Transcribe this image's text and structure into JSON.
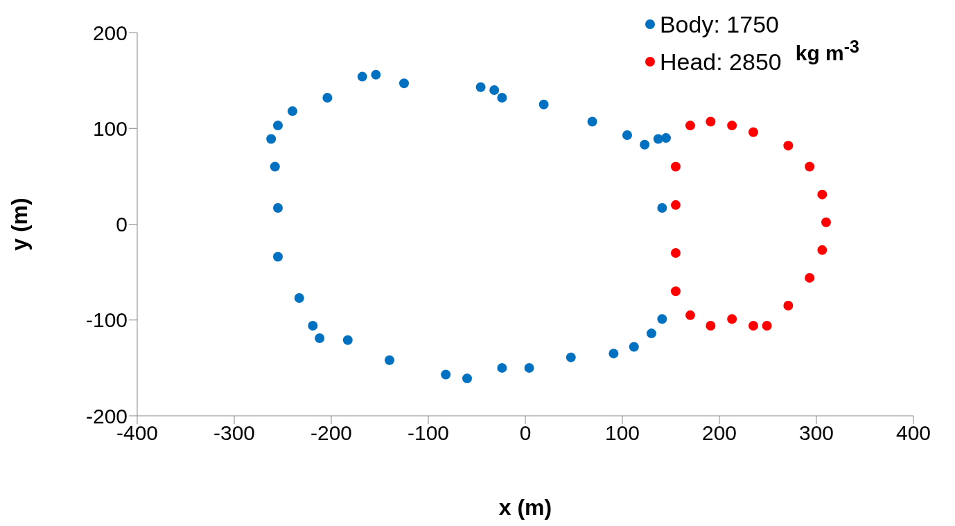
{
  "chart_data": {
    "type": "scatter",
    "xlabel": "x (m)",
    "ylabel": "y (m)",
    "legend_title": "kg m$^{-3}$",
    "legend": "top right",
    "marker": "circle",
    "grid": false,
    "xlim": [
      -400,
      400
    ],
    "xticks": [
      -400,
      -300,
      -200,
      -100,
      0,
      100,
      200,
      300,
      400
    ],
    "ylim": [
      -200,
      200
    ],
    "yticks": [
      -200,
      -100,
      0,
      100,
      200
    ],
    "series": [
      {
        "name": "Body: 1750",
        "color": "#0070c0",
        "x": [
          -262,
          -255,
          -240,
          -204,
          -168,
          -154,
          -125,
          -46,
          -32,
          -24,
          19,
          69,
          105,
          123,
          137,
          145,
          141,
          141,
          130,
          112,
          91,
          47,
          4,
          -24,
          -60,
          -82,
          -140,
          -183,
          -212,
          -219,
          -233,
          -255,
          -255,
          -258
        ],
        "values": [
          89,
          103,
          118,
          132,
          154,
          156,
          147,
          143,
          140,
          132,
          125,
          107,
          93,
          83,
          89,
          90,
          17,
          -99,
          -114,
          -128,
          -135,
          -139,
          -150,
          -150,
          -161,
          -157,
          -142,
          -121,
          -119,
          -106,
          -77,
          -34,
          17,
          60
        ]
      },
      {
        "name": "Head: 2850",
        "color": "#ff0000",
        "x": [
          170,
          191,
          213,
          235,
          271,
          293,
          306,
          310,
          306,
          293,
          271,
          249,
          235,
          213,
          191,
          170,
          155,
          155,
          155,
          155
        ],
        "values": [
          103,
          107,
          103,
          96,
          82,
          60,
          31,
          2,
          -27,
          -56,
          -85,
          -106,
          -106,
          -99,
          -106,
          -95,
          -70,
          -30,
          20,
          60
        ]
      }
    ]
  }
}
